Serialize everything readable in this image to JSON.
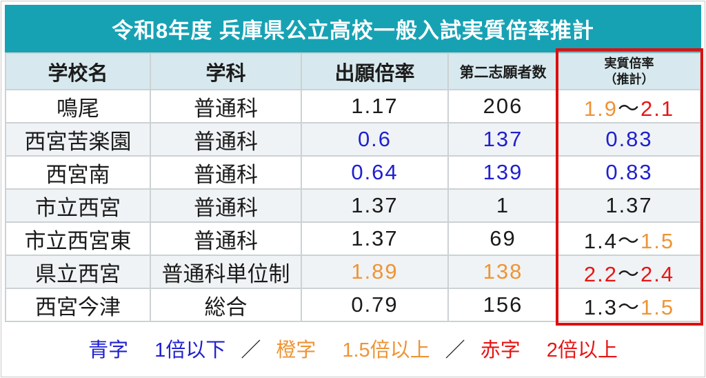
{
  "title": "令和8年度 兵庫県公立高校一般入試実質倍率推計",
  "colors": {
    "title_bg": "#17a2b4",
    "title_text": "#ffffff",
    "header_bg": "#d7e9ee",
    "alt_row_bg": "#f0f3f5",
    "grid": "#ccd1d4",
    "highlight_border": "#dd0f0f",
    "text_black": "#1a1a1a",
    "text_blue": "#2020cf",
    "text_orange": "#ee9435",
    "text_red": "#e81414"
  },
  "table": {
    "headers": {
      "school": "学校名",
      "dept": "学科",
      "app_ratio": "出願倍率",
      "second_choice": "第二志願者数",
      "actual_line1": "実質倍率",
      "actual_line2": "（推計）"
    },
    "rows": [
      {
        "school": "鳴尾",
        "dept": {
          "text": "普通科",
          "color": "black"
        },
        "app_ratio": {
          "text": "1.17",
          "color": "black"
        },
        "second_choice": {
          "text": "206",
          "color": "black"
        },
        "actual": [
          {
            "text": "1.9",
            "color": "orange"
          },
          {
            "text": "～",
            "color": "black"
          },
          {
            "text": "2.1",
            "color": "red"
          }
        ]
      },
      {
        "school": "西宮苦楽園",
        "dept": {
          "text": "普通科",
          "color": "black"
        },
        "app_ratio": {
          "text": "0.6",
          "color": "blue"
        },
        "second_choice": {
          "text": "137",
          "color": "blue"
        },
        "actual": [
          {
            "text": "0.83",
            "color": "blue"
          }
        ]
      },
      {
        "school": "西宮南",
        "dept": {
          "text": "普通科",
          "color": "black"
        },
        "app_ratio": {
          "text": "0.64",
          "color": "blue"
        },
        "second_choice": {
          "text": "139",
          "color": "blue"
        },
        "actual": [
          {
            "text": "0.83",
            "color": "blue"
          }
        ]
      },
      {
        "school": "市立西宮",
        "dept": {
          "text": "普通科",
          "color": "black"
        },
        "app_ratio": {
          "text": "1.37",
          "color": "black"
        },
        "second_choice": {
          "text": "1",
          "color": "black"
        },
        "actual": [
          {
            "text": "1.37",
            "color": "black"
          }
        ]
      },
      {
        "school": "市立西宮東",
        "dept": {
          "text": "普通科",
          "color": "black"
        },
        "app_ratio": {
          "text": "1.37",
          "color": "black"
        },
        "second_choice": {
          "text": "69",
          "color": "black"
        },
        "actual": [
          {
            "text": "1.4",
            "color": "black"
          },
          {
            "text": "～",
            "color": "black"
          },
          {
            "text": "1.5",
            "color": "orange"
          }
        ]
      },
      {
        "school": "県立西宮",
        "dept": {
          "text": "普通科単位制",
          "color": "black"
        },
        "app_ratio": {
          "text": "1.89",
          "color": "orange"
        },
        "second_choice": {
          "text": "138",
          "color": "orange"
        },
        "actual": [
          {
            "text": "2.2",
            "color": "red"
          },
          {
            "text": "～",
            "color": "black"
          },
          {
            "text": "2.4",
            "color": "red"
          }
        ]
      },
      {
        "school": "西宮今津",
        "dept": {
          "text": "総合",
          "color": "black"
        },
        "app_ratio": {
          "text": "0.79",
          "color": "black"
        },
        "second_choice": {
          "text": "156",
          "color": "black"
        },
        "actual": [
          {
            "text": "1.3",
            "color": "black"
          },
          {
            "text": "～",
            "color": "black"
          },
          {
            "text": "1.5",
            "color": "orange"
          }
        ]
      }
    ]
  },
  "legend": {
    "separator": "／",
    "groups": [
      {
        "label": "青字",
        "desc": "1倍以下",
        "color": "blue"
      },
      {
        "label": "橙字",
        "desc": "1.5倍以上",
        "color": "orange"
      },
      {
        "label": "赤字",
        "desc": "2倍以上",
        "color": "red"
      }
    ]
  },
  "chart_data": {
    "type": "table",
    "title": "令和8年度 兵庫県公立高校一般入試実質倍率推計",
    "columns": [
      "学校名",
      "学科",
      "出願倍率",
      "第二志願者数",
      "実質倍率（推計）"
    ],
    "rows": [
      [
        "鳴尾",
        "普通科",
        "1.17",
        "206",
        "1.9～2.1"
      ],
      [
        "西宮苦楽園",
        "普通科",
        "0.6",
        "137",
        "0.83"
      ],
      [
        "西宮南",
        "普通科",
        "0.64",
        "139",
        "0.83"
      ],
      [
        "市立西宮",
        "普通科",
        "1.37",
        "1",
        "1.37"
      ],
      [
        "市立西宮東",
        "普通科",
        "1.37",
        "69",
        "1.4～1.5"
      ],
      [
        "県立西宮",
        "普通科単位制",
        "1.89",
        "138",
        "2.2～2.4"
      ],
      [
        "西宮今津",
        "総合",
        "0.79",
        "156",
        "1.3～1.5"
      ]
    ],
    "notes": "青字 1倍以下 ／ 橙字 1.5倍以上 ／ 赤字 2倍以上"
  }
}
